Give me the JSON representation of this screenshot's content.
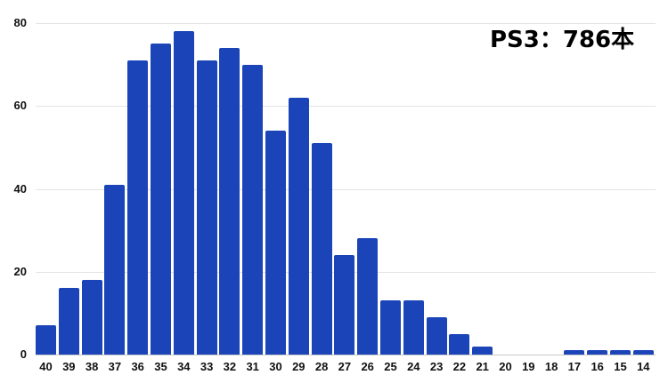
{
  "chart_data": {
    "type": "bar",
    "title": "PS3：786本",
    "xlabel": "",
    "ylabel": "",
    "ylim": [
      0,
      80
    ],
    "yticks": [
      0,
      20,
      40,
      60,
      80
    ],
    "grid": true,
    "legend": null,
    "bar_color": "#1a44b8",
    "categories": [
      "40",
      "39",
      "38",
      "37",
      "36",
      "35",
      "34",
      "33",
      "32",
      "31",
      "30",
      "29",
      "28",
      "27",
      "26",
      "25",
      "24",
      "23",
      "22",
      "21",
      "20",
      "19",
      "18",
      "17",
      "16",
      "15",
      "14"
    ],
    "values": [
      7,
      16,
      18,
      41,
      71,
      75,
      78,
      71,
      74,
      70,
      54,
      62,
      51,
      24,
      28,
      13,
      13,
      9,
      5,
      2,
      0,
      0,
      0,
      1,
      1,
      1,
      1
    ]
  }
}
